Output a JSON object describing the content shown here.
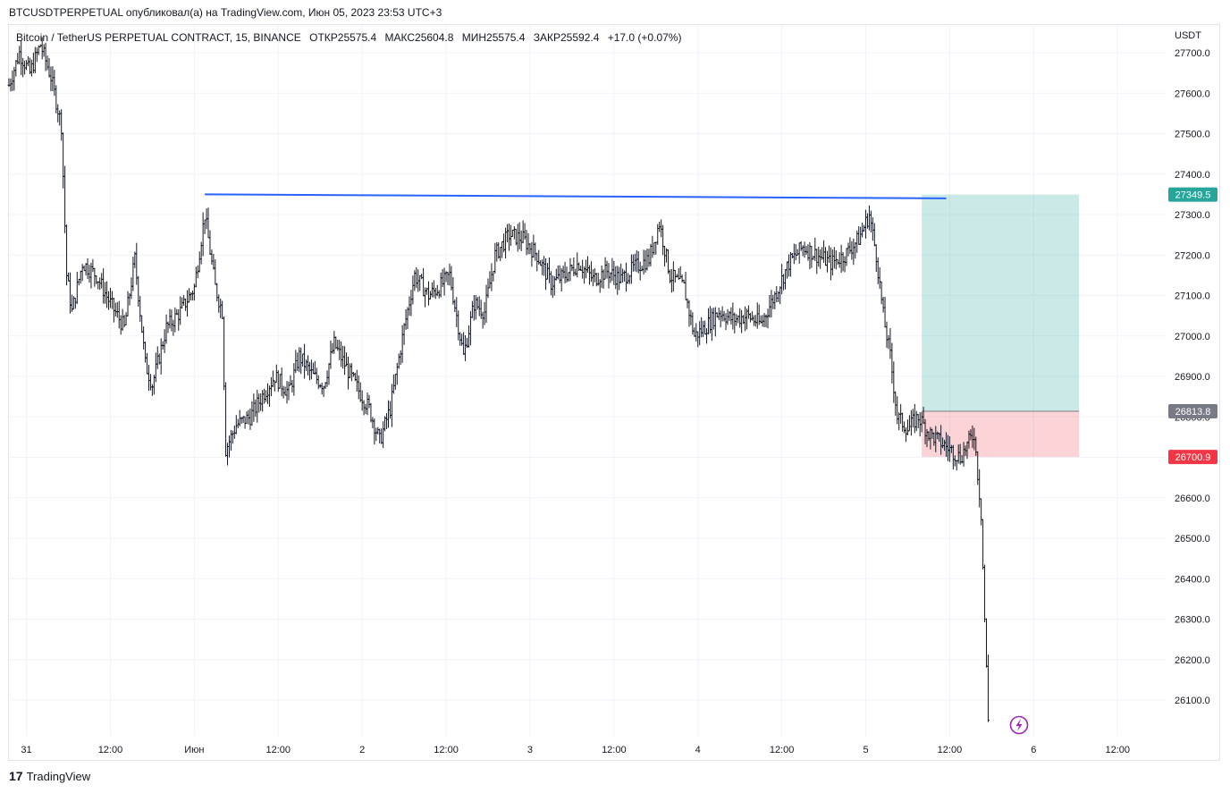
{
  "header": {
    "publish_line": "BTCUSDTPERPETUAL опубликовал(а) на TradingView.com, Июн 05, 2023 23:53 UTC+3"
  },
  "legend": {
    "symbol": "Bitcoin / TetherUS PERPETUAL CONTRACT, 15, BINANCE",
    "open": "ОТКР25575.4",
    "high": "МАКС25604.8",
    "low": "МИН25575.4",
    "close": "ЗАКР25592.4",
    "change": "+17.0 (+0.07%)"
  },
  "axis": {
    "currency": "USDT"
  },
  "footer": {
    "brand": "TradingView",
    "logo_glyph": "17"
  },
  "colors": {
    "trendline": "#2962ff",
    "profit": "#26a69a",
    "loss": "#f23645",
    "entry": "#787b86"
  },
  "chart_data": {
    "type": "line",
    "chart_style": "OHLC bars (15m)",
    "ylim": [
      26000,
      27750
    ],
    "y_ticks": [
      27700,
      27600,
      27500,
      27400,
      27300,
      27200,
      27100,
      27000,
      26900,
      26800,
      26700,
      26600,
      26500,
      26400,
      26300,
      26200,
      26100
    ],
    "y_tick_labels": [
      "27700.0",
      "27600.0",
      "27500.0",
      "27400.0",
      "27300.0",
      "27200.0",
      "27100.0",
      "27000.0",
      "26900.0",
      "26800.0",
      "26700.0",
      "26600.0",
      "26500.0",
      "26400.0",
      "26300.0",
      "26200.0",
      "26100.0"
    ],
    "x_ticks": [
      "31",
      "12:00",
      "Июн",
      "12:00",
      "2",
      "12:00",
      "3",
      "12:00",
      "4",
      "12:00",
      "5",
      "12:00",
      "6",
      "12:00"
    ],
    "x_tick_times": [
      "05-31 00:00",
      "05-31 12:00",
      "06-01 00:00",
      "06-01 12:00",
      "06-02 00:00",
      "06-02 12:00",
      "06-03 00:00",
      "06-03 12:00",
      "06-04 00:00",
      "06-04 12:00",
      "06-05 00:00",
      "06-05 12:00",
      "06-06 00:00",
      "06-06 12:00"
    ],
    "xlim": [
      "05-30 21:30",
      "06-06 19:00"
    ],
    "price_path": [
      [
        "05-30 21:30",
        27620
      ],
      [
        "05-30 23:00",
        27700
      ],
      [
        "05-31 00:30",
        27650
      ],
      [
        "05-31 02:00",
        27720
      ],
      [
        "05-31 03:30",
        27640
      ],
      [
        "05-31 05:00",
        27520
      ],
      [
        "05-31 05:45",
        27150
      ],
      [
        "05-31 06:30",
        27060
      ],
      [
        "05-31 08:00",
        27180
      ],
      [
        "05-31 10:00",
        27150
      ],
      [
        "05-31 12:00",
        27080
      ],
      [
        "05-31 14:00",
        27020
      ],
      [
        "05-31 15:30",
        27190
      ],
      [
        "05-31 17:00",
        26930
      ],
      [
        "05-31 18:00",
        26880
      ],
      [
        "05-31 20:00",
        27020
      ],
      [
        "05-31 22:00",
        27060
      ],
      [
        "06-01 00:00",
        27120
      ],
      [
        "06-01 01:30",
        27300
      ],
      [
        "06-01 03:00",
        27120
      ],
      [
        "06-01 04:00",
        27060
      ],
      [
        "06-01 04:30",
        26720
      ],
      [
        "06-01 06:00",
        26780
      ],
      [
        "06-01 08:00",
        26800
      ],
      [
        "06-01 10:00",
        26860
      ],
      [
        "06-01 11:30",
        26900
      ],
      [
        "06-01 13:30",
        26860
      ],
      [
        "06-01 15:00",
        26950
      ],
      [
        "06-01 17:00",
        26900
      ],
      [
        "06-01 18:30",
        26880
      ],
      [
        "06-01 20:00",
        26980
      ],
      [
        "06-01 21:30",
        26930
      ],
      [
        "06-01 23:00",
        26880
      ],
      [
        "06-02 01:00",
        26820
      ],
      [
        "06-02 02:30",
        26740
      ],
      [
        "06-02 04:00",
        26820
      ],
      [
        "06-02 06:00",
        27020
      ],
      [
        "06-02 07:30",
        27150
      ],
      [
        "06-02 09:30",
        27100
      ],
      [
        "06-02 11:00",
        27120
      ],
      [
        "06-02 12:30",
        27150
      ],
      [
        "06-02 14:30",
        26950
      ],
      [
        "06-02 16:00",
        27080
      ],
      [
        "06-02 17:30",
        27060
      ],
      [
        "06-02 19:00",
        27200
      ],
      [
        "06-02 21:00",
        27250
      ],
      [
        "06-02 23:00",
        27240
      ],
      [
        "06-03 01:00",
        27200
      ],
      [
        "06-03 03:00",
        27130
      ],
      [
        "06-03 05:00",
        27150
      ],
      [
        "06-03 07:00",
        27180
      ],
      [
        "06-03 09:00",
        27140
      ],
      [
        "06-03 11:00",
        27160
      ],
      [
        "06-03 13:00",
        27140
      ],
      [
        "06-03 15:00",
        27170
      ],
      [
        "06-03 17:00",
        27190
      ],
      [
        "06-03 18:30",
        27280
      ],
      [
        "06-03 20:00",
        27150
      ],
      [
        "06-03 22:00",
        27120
      ],
      [
        "06-03 23:30",
        27000
      ],
      [
        "06-04 01:00",
        27020
      ],
      [
        "06-04 03:00",
        27060
      ],
      [
        "06-04 05:00",
        27040
      ],
      [
        "06-04 07:00",
        27050
      ],
      [
        "06-04 09:00",
        27030
      ],
      [
        "06-04 11:00",
        27100
      ],
      [
        "06-04 13:00",
        27180
      ],
      [
        "06-04 15:00",
        27220
      ],
      [
        "06-04 17:00",
        27200
      ],
      [
        "06-04 19:00",
        27180
      ],
      [
        "06-04 21:00",
        27200
      ],
      [
        "06-04 23:00",
        27240
      ],
      [
        "06-05 00:30",
        27300
      ],
      [
        "06-05 01:30",
        27200
      ],
      [
        "06-05 02:30",
        27050
      ],
      [
        "06-05 03:30",
        26950
      ],
      [
        "06-05 04:30",
        26800
      ],
      [
        "06-05 06:00",
        26770
      ],
      [
        "06-05 07:30",
        26800
      ],
      [
        "06-05 09:00",
        26760
      ],
      [
        "06-05 10:30",
        26740
      ],
      [
        "06-05 12:00",
        26720
      ],
      [
        "06-05 13:30",
        26700
      ],
      [
        "06-05 15:30",
        26760
      ],
      [
        "06-05 16:30",
        26560
      ],
      [
        "06-05 17:00",
        26300
      ],
      [
        "06-05 17:30",
        26050
      ]
    ],
    "trendline": {
      "from": [
        "06-01 01:30",
        27350
      ],
      "to": [
        "06-05 11:30",
        27340
      ]
    },
    "position": {
      "entry": 26813.8,
      "target": 27349.5,
      "stop": 26700.9,
      "start": "06-05 08:00",
      "end": "06-06 06:30",
      "labels": {
        "target": "27349.5",
        "entry": "26813.8",
        "stop": "26700.9"
      }
    },
    "grid": true,
    "legend": "top-left"
  }
}
